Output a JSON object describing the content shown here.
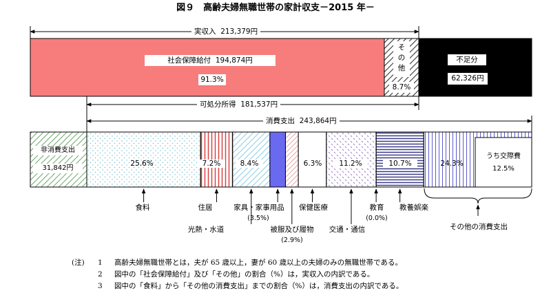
{
  "title": "図９　高齢夫婦無職世帯の家計収支－2015 年－",
  "chart_data": {
    "type": "bar",
    "income": {
      "label": "実収入",
      "total": "213,379円",
      "parts": [
        {
          "name": "社会保障給付",
          "amount": "194,874円",
          "share": "91.3%",
          "value": 91.3,
          "color": "#f77c7c"
        },
        {
          "name_lines": [
            "そ",
            "の",
            "他"
          ],
          "share": "8.7%",
          "value": 8.7
        }
      ],
      "deficit": {
        "name": "不足分",
        "amount": "62,326円"
      }
    },
    "disposable": {
      "label": "可処分所得",
      "amount": "181,537円"
    },
    "consumption": {
      "label": "消費支出",
      "amount": "243,864円"
    },
    "non_consumption": {
      "label": "非消費支出",
      "amount": "31,842円"
    },
    "categories": [
      {
        "name": "食料",
        "share": "25.6%",
        "value": 25.6
      },
      {
        "name": "住居",
        "share": "7.2%",
        "value": 7.2
      },
      {
        "name": "光熱・水道",
        "share": "8.4%",
        "value": 8.4
      },
      {
        "name": "家具・家事用品",
        "share": "(3.5%)",
        "value": 3.5
      },
      {
        "name": "被服及び履物",
        "share": "(2.9%)",
        "value": 2.9
      },
      {
        "name": "保健医療",
        "share": "6.3%",
        "value": 6.3
      },
      {
        "name": "交通・通信",
        "share": "11.2%",
        "value": 11.2
      },
      {
        "name": "教育",
        "share": "(0.0%)",
        "value": 0.0
      },
      {
        "name": "教養娯楽",
        "share": "10.7%",
        "value": 10.7
      },
      {
        "name": "その他の消費支出",
        "share": "24.3%",
        "value": 24.3
      }
    ],
    "sub_item": {
      "name": "うち交際費",
      "share": "12.5%",
      "value": 12.5
    }
  },
  "notes": [
    {
      "marker": "(注)",
      "num": "1",
      "text": "高齢夫婦無職世帯とは，夫が 65 歳以上，妻が 60 歳以上の夫婦のみの無職世帯である。"
    },
    {
      "marker": "",
      "num": "2",
      "text": "図中の「社会保障給付」及び「その他」の割合（%）は，実収入の内訳である。"
    },
    {
      "marker": "",
      "num": "3",
      "text": "図中の「食料」から「その他の消費支出」までの割合（%）は，消費支出の内訳である。"
    }
  ]
}
